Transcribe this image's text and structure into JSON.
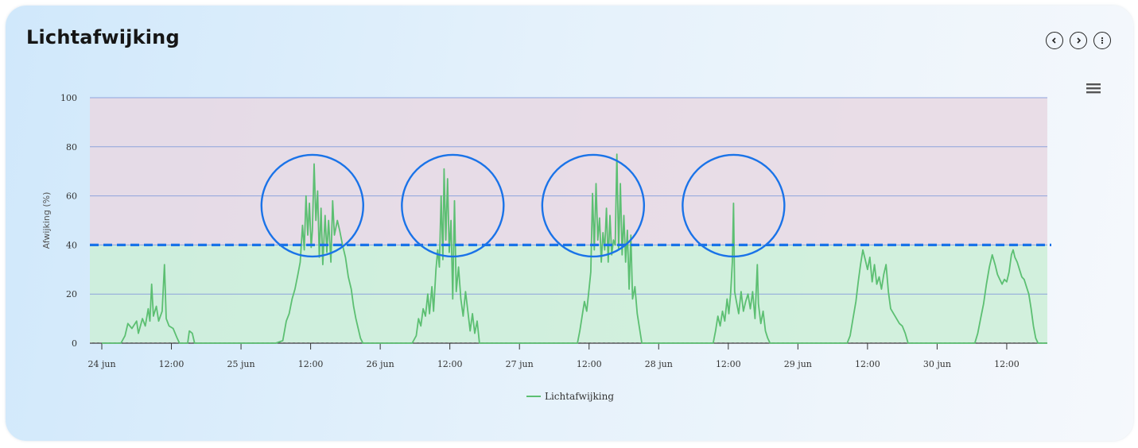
{
  "header": {
    "title": "Lichtafwijking"
  },
  "icons": {
    "prev": "chevron-left-icon",
    "next": "chevron-right-icon",
    "more": "more-vertical-icon",
    "menu": "hamburger-menu-icon"
  },
  "chart_data": {
    "type": "line",
    "ylabel": "Afwijking (%)",
    "ylim": [
      0,
      100
    ],
    "yticks": [
      0,
      20,
      40,
      60,
      80,
      100
    ],
    "xlim_hours": [
      0,
      163
    ],
    "xticks": [
      {
        "h": 0,
        "label": "24 jun"
      },
      {
        "h": 12,
        "label": "12:00"
      },
      {
        "h": 24,
        "label": "25 jun"
      },
      {
        "h": 36,
        "label": "12:00"
      },
      {
        "h": 48,
        "label": "26 jun"
      },
      {
        "h": 60,
        "label": "12:00"
      },
      {
        "h": 72,
        "label": "27 jun"
      },
      {
        "h": 84,
        "label": "12:00"
      },
      {
        "h": 96,
        "label": "28 jun"
      },
      {
        "h": 108,
        "label": "12:00"
      },
      {
        "h": 120,
        "label": "29 jun"
      },
      {
        "h": 132,
        "label": "12:00"
      },
      {
        "h": 144,
        "label": "30 jun"
      },
      {
        "h": 156,
        "label": "12:00"
      }
    ],
    "threshold": 40,
    "bands": [
      {
        "from": 0,
        "to": 40,
        "color": "#cdeed7"
      },
      {
        "from": 40,
        "to": 100,
        "color": "#e8d8e3"
      }
    ],
    "grid": true,
    "legend": "bottom-center",
    "series": [
      {
        "name": "Lichtafwijking",
        "color": "#5cbf72",
        "points": [
          [
            0,
            0
          ],
          [
            3.3,
            0
          ],
          [
            4.0,
            3
          ],
          [
            4.5,
            8
          ],
          [
            5.2,
            6
          ],
          [
            6.0,
            9
          ],
          [
            6.3,
            4
          ],
          [
            7.0,
            10
          ],
          [
            7.5,
            7
          ],
          [
            8.0,
            14
          ],
          [
            8.3,
            9
          ],
          [
            8.6,
            24
          ],
          [
            8.9,
            11
          ],
          [
            9.4,
            15
          ],
          [
            9.8,
            9
          ],
          [
            10.4,
            13
          ],
          [
            10.8,
            32
          ],
          [
            11.1,
            10
          ],
          [
            11.6,
            7
          ],
          [
            12.3,
            6
          ],
          [
            13.0,
            2
          ],
          [
            13.4,
            0
          ],
          [
            14.8,
            0
          ],
          [
            15.1,
            5
          ],
          [
            15.6,
            4
          ],
          [
            16.0,
            0
          ],
          [
            20.0,
            0
          ],
          [
            30.0,
            0
          ],
          [
            31.2,
            1
          ],
          [
            31.8,
            9
          ],
          [
            32.3,
            12
          ],
          [
            32.8,
            18
          ],
          [
            33.3,
            22
          ],
          [
            33.8,
            28
          ],
          [
            34.2,
            33
          ],
          [
            34.6,
            48
          ],
          [
            34.9,
            38
          ],
          [
            35.2,
            60
          ],
          [
            35.5,
            44
          ],
          [
            35.8,
            57
          ],
          [
            36.1,
            39
          ],
          [
            36.3,
            46
          ],
          [
            36.6,
            73
          ],
          [
            36.9,
            50
          ],
          [
            37.2,
            62
          ],
          [
            37.5,
            35
          ],
          [
            37.8,
            55
          ],
          [
            38.1,
            32
          ],
          [
            38.5,
            52
          ],
          [
            38.8,
            37
          ],
          [
            39.1,
            50
          ],
          [
            39.5,
            33
          ],
          [
            39.8,
            58
          ],
          [
            40.1,
            44
          ],
          [
            40.6,
            50
          ],
          [
            41.0,
            46
          ],
          [
            41.5,
            40
          ],
          [
            42.0,
            35
          ],
          [
            42.5,
            27
          ],
          [
            43.0,
            22
          ],
          [
            43.4,
            15
          ],
          [
            43.8,
            10
          ],
          [
            44.2,
            6
          ],
          [
            44.6,
            2
          ],
          [
            45.0,
            0
          ],
          [
            48.0,
            0
          ],
          [
            53.5,
            0
          ],
          [
            54.2,
            3
          ],
          [
            54.6,
            10
          ],
          [
            55.0,
            7
          ],
          [
            55.4,
            14
          ],
          [
            55.8,
            11
          ],
          [
            56.2,
            20
          ],
          [
            56.5,
            12
          ],
          [
            56.9,
            23
          ],
          [
            57.2,
            13
          ],
          [
            57.6,
            30
          ],
          [
            57.9,
            38
          ],
          [
            58.2,
            31
          ],
          [
            58.5,
            60
          ],
          [
            58.8,
            34
          ],
          [
            59.0,
            71
          ],
          [
            59.3,
            42
          ],
          [
            59.6,
            67
          ],
          [
            59.9,
            37
          ],
          [
            60.2,
            50
          ],
          [
            60.5,
            18
          ],
          [
            60.8,
            58
          ],
          [
            61.1,
            21
          ],
          [
            61.5,
            31
          ],
          [
            61.9,
            18
          ],
          [
            62.3,
            11
          ],
          [
            62.7,
            21
          ],
          [
            63.1,
            13
          ],
          [
            63.5,
            5
          ],
          [
            63.9,
            12
          ],
          [
            64.3,
            4
          ],
          [
            64.7,
            9
          ],
          [
            65.1,
            0
          ],
          [
            66.0,
            0
          ],
          [
            72.0,
            0
          ],
          [
            82.0,
            0
          ],
          [
            82.4,
            5
          ],
          [
            82.8,
            11
          ],
          [
            83.2,
            17
          ],
          [
            83.6,
            13
          ],
          [
            84.0,
            22
          ],
          [
            84.3,
            29
          ],
          [
            84.6,
            61
          ],
          [
            84.9,
            38
          ],
          [
            85.2,
            65
          ],
          [
            85.5,
            42
          ],
          [
            85.8,
            51
          ],
          [
            86.1,
            33
          ],
          [
            86.4,
            45
          ],
          [
            86.7,
            38
          ],
          [
            87.0,
            55
          ],
          [
            87.3,
            33
          ],
          [
            87.6,
            52
          ],
          [
            87.9,
            36
          ],
          [
            88.2,
            42
          ],
          [
            88.5,
            40
          ],
          [
            88.8,
            77
          ],
          [
            89.1,
            38
          ],
          [
            89.4,
            65
          ],
          [
            89.7,
            36
          ],
          [
            90.0,
            52
          ],
          [
            90.3,
            33
          ],
          [
            90.6,
            46
          ],
          [
            90.9,
            22
          ],
          [
            91.2,
            44
          ],
          [
            91.5,
            18
          ],
          [
            91.9,
            23
          ],
          [
            92.3,
            12
          ],
          [
            92.7,
            6
          ],
          [
            93.1,
            0
          ],
          [
            94.0,
            0
          ],
          [
            96.0,
            0
          ],
          [
            105.4,
            0
          ],
          [
            105.8,
            5
          ],
          [
            106.2,
            11
          ],
          [
            106.6,
            7
          ],
          [
            107.0,
            13
          ],
          [
            107.4,
            9
          ],
          [
            107.8,
            18
          ],
          [
            108.1,
            12
          ],
          [
            108.4,
            20
          ],
          [
            108.7,
            33
          ],
          [
            108.9,
            57
          ],
          [
            109.1,
            21
          ],
          [
            109.4,
            17
          ],
          [
            109.8,
            12
          ],
          [
            110.2,
            21
          ],
          [
            110.6,
            13
          ],
          [
            111.0,
            17
          ],
          [
            111.4,
            20
          ],
          [
            111.8,
            14
          ],
          [
            112.2,
            21
          ],
          [
            112.6,
            10
          ],
          [
            113.0,
            32
          ],
          [
            113.2,
            16
          ],
          [
            113.6,
            8
          ],
          [
            114.0,
            13
          ],
          [
            114.4,
            5
          ],
          [
            114.8,
            2
          ],
          [
            115.2,
            0
          ],
          [
            120.0,
            0
          ],
          [
            128.5,
            0
          ],
          [
            129.0,
            3
          ],
          [
            129.5,
            10
          ],
          [
            130.0,
            17
          ],
          [
            130.4,
            25
          ],
          [
            130.8,
            32
          ],
          [
            131.2,
            38
          ],
          [
            131.6,
            34
          ],
          [
            132.0,
            30
          ],
          [
            132.4,
            35
          ],
          [
            132.8,
            25
          ],
          [
            133.2,
            32
          ],
          [
            133.6,
            24
          ],
          [
            134.0,
            27
          ],
          [
            134.4,
            22
          ],
          [
            134.8,
            28
          ],
          [
            135.2,
            32
          ],
          [
            135.6,
            21
          ],
          [
            136.0,
            14
          ],
          [
            136.5,
            12
          ],
          [
            137.0,
            10
          ],
          [
            137.5,
            8
          ],
          [
            138.0,
            7
          ],
          [
            138.5,
            4
          ],
          [
            139.0,
            0
          ],
          [
            144.0,
            0
          ],
          [
            150.5,
            0
          ],
          [
            151.0,
            4
          ],
          [
            151.5,
            10
          ],
          [
            152.0,
            16
          ],
          [
            152.5,
            24
          ],
          [
            153.0,
            31
          ],
          [
            153.5,
            36
          ],
          [
            154.0,
            32
          ],
          [
            154.4,
            28
          ],
          [
            154.8,
            26
          ],
          [
            155.2,
            24
          ],
          [
            155.6,
            26
          ],
          [
            156.0,
            25
          ],
          [
            156.4,
            29
          ],
          [
            156.8,
            36
          ],
          [
            157.1,
            38
          ],
          [
            157.4,
            35
          ],
          [
            157.8,
            33
          ],
          [
            158.2,
            30
          ],
          [
            158.6,
            27
          ],
          [
            159.0,
            26
          ],
          [
            159.4,
            23
          ],
          [
            159.8,
            20
          ],
          [
            160.2,
            14
          ],
          [
            160.6,
            7
          ],
          [
            161.0,
            2
          ],
          [
            161.4,
            0
          ],
          [
            163.0,
            0
          ]
        ]
      }
    ],
    "annotations": [
      {
        "type": "circle",
        "cx_h": 36.3,
        "cy": 56
      },
      {
        "type": "circle",
        "cx_h": 60.5,
        "cy": 56
      },
      {
        "type": "circle",
        "cx_h": 84.7,
        "cy": 56
      },
      {
        "type": "circle",
        "cx_h": 108.9,
        "cy": 56
      }
    ],
    "annotation_color": "#1a73e8"
  }
}
